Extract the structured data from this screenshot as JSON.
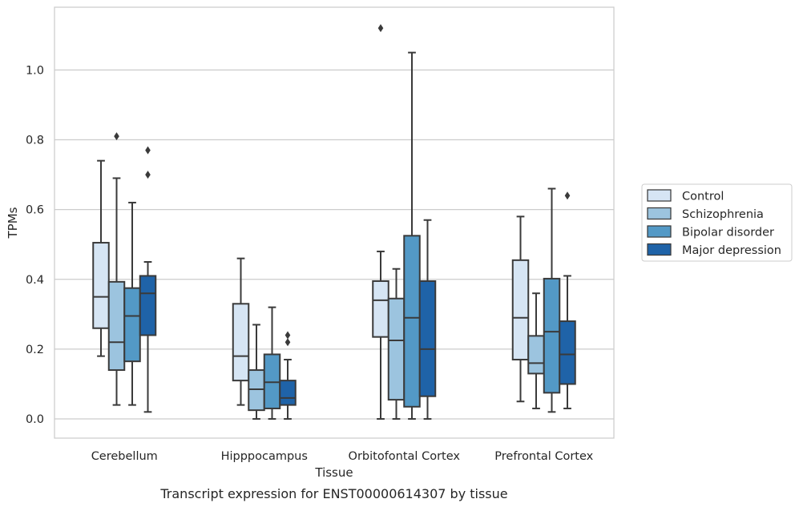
{
  "chart_data": {
    "type": "box",
    "title": "Transcript expression for ENST00000614307 by tissue",
    "xlabel": "Tissue",
    "ylabel": "TPMs",
    "ylim": [
      -0.055,
      1.18
    ],
    "yticks": [
      0.0,
      0.2,
      0.4,
      0.6,
      0.8,
      1.0
    ],
    "ytick_labels": [
      "0.0",
      "0.2",
      "0.4",
      "0.6",
      "0.8",
      "1.0"
    ],
    "grid": true,
    "legend_position": "right",
    "categories": [
      "Cerebellum",
      "Hipppocampus",
      "Orbitofontal Cortex",
      "Prefrontal Cortex"
    ],
    "series": [
      {
        "name": "Control",
        "color": "#d6e5f4",
        "boxes": [
          {
            "whisker_low": 0.18,
            "q1": 0.26,
            "median": 0.35,
            "q3": 0.505,
            "whisker_high": 0.74,
            "outliers": []
          },
          {
            "whisker_low": 0.04,
            "q1": 0.11,
            "median": 0.18,
            "q3": 0.33,
            "whisker_high": 0.46,
            "outliers": []
          },
          {
            "whisker_low": 0.0,
            "q1": 0.235,
            "median": 0.34,
            "q3": 0.395,
            "whisker_high": 0.48,
            "outliers": [
              1.12
            ]
          },
          {
            "whisker_low": 0.05,
            "q1": 0.17,
            "median": 0.29,
            "q3": 0.455,
            "whisker_high": 0.58,
            "outliers": []
          }
        ]
      },
      {
        "name": "Schizophrenia",
        "color": "#9cc4df",
        "boxes": [
          {
            "whisker_low": 0.04,
            "q1": 0.14,
            "median": 0.22,
            "q3": 0.393,
            "whisker_high": 0.69,
            "outliers": [
              0.81
            ]
          },
          {
            "whisker_low": 0.0,
            "q1": 0.025,
            "median": 0.085,
            "q3": 0.14,
            "whisker_high": 0.27,
            "outliers": []
          },
          {
            "whisker_low": 0.0,
            "q1": 0.055,
            "median": 0.225,
            "q3": 0.345,
            "whisker_high": 0.43,
            "outliers": []
          },
          {
            "whisker_low": 0.03,
            "q1": 0.13,
            "median": 0.16,
            "q3": 0.238,
            "whisker_high": 0.36,
            "outliers": []
          }
        ]
      },
      {
        "name": "Bipolar disorder",
        "color": "#5399c6",
        "boxes": [
          {
            "whisker_low": 0.04,
            "q1": 0.165,
            "median": 0.295,
            "q3": 0.375,
            "whisker_high": 0.62,
            "outliers": []
          },
          {
            "whisker_low": 0.0,
            "q1": 0.03,
            "median": 0.105,
            "q3": 0.185,
            "whisker_high": 0.32,
            "outliers": []
          },
          {
            "whisker_low": 0.0,
            "q1": 0.035,
            "median": 0.29,
            "q3": 0.525,
            "whisker_high": 1.05,
            "outliers": []
          },
          {
            "whisker_low": 0.02,
            "q1": 0.075,
            "median": 0.25,
            "q3": 0.402,
            "whisker_high": 0.66,
            "outliers": []
          }
        ]
      },
      {
        "name": "Major depression",
        "color": "#1f63a8",
        "boxes": [
          {
            "whisker_low": 0.02,
            "q1": 0.24,
            "median": 0.36,
            "q3": 0.41,
            "whisker_high": 0.45,
            "outliers": [
              0.7,
              0.77
            ]
          },
          {
            "whisker_low": 0.0,
            "q1": 0.04,
            "median": 0.06,
            "q3": 0.11,
            "whisker_high": 0.17,
            "outliers": [
              0.22,
              0.24
            ]
          },
          {
            "whisker_low": 0.0,
            "q1": 0.065,
            "median": 0.2,
            "q3": 0.395,
            "whisker_high": 0.57,
            "outliers": []
          },
          {
            "whisker_low": 0.03,
            "q1": 0.1,
            "median": 0.185,
            "q3": 0.28,
            "whisker_high": 0.41,
            "outliers": [
              0.64
            ]
          }
        ]
      }
    ]
  }
}
